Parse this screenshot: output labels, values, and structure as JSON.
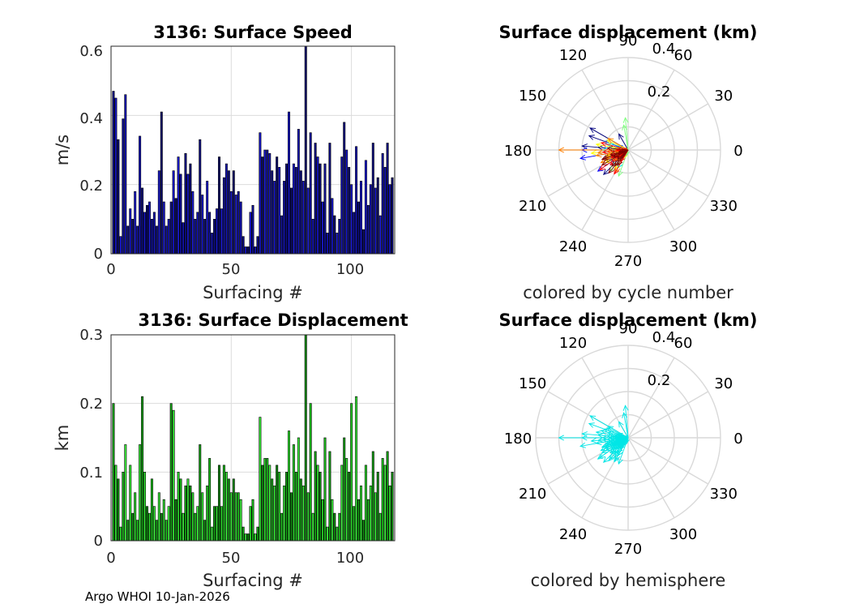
{
  "figure": {
    "footer": "Argo WHOI 10-Jan-2026"
  },
  "chart_data": [
    {
      "type": "bar",
      "title": "3136: Surface Speed",
      "xlabel": "Surfacing #",
      "ylabel": "m/s",
      "xlim": [
        0,
        118
      ],
      "ylim": [
        0,
        0.6
      ],
      "xticks": [
        "0",
        "50",
        "100"
      ],
      "yticks": [
        "0",
        "0.2",
        "0.4",
        "0.6"
      ],
      "grid": true,
      "bar_colors": [
        "#0d0d80",
        "#1414c8",
        "#0b0b6a",
        "#1a1ad2",
        "#10109a",
        "#1212b4"
      ],
      "x": [
        1,
        2,
        3,
        4,
        5,
        6,
        7,
        8,
        9,
        10,
        11,
        12,
        13,
        14,
        15,
        16,
        17,
        18,
        19,
        20,
        21,
        22,
        23,
        24,
        25,
        26,
        27,
        28,
        29,
        30,
        31,
        32,
        33,
        34,
        35,
        36,
        37,
        38,
        39,
        40,
        41,
        42,
        43,
        44,
        45,
        46,
        47,
        48,
        49,
        50,
        51,
        52,
        53,
        54,
        55,
        56,
        57,
        58,
        59,
        60,
        61,
        62,
        63,
        64,
        65,
        66,
        67,
        68,
        69,
        70,
        71,
        72,
        73,
        74,
        75,
        76,
        77,
        78,
        79,
        80,
        81,
        82,
        83,
        84,
        85,
        86,
        87,
        88,
        89,
        90,
        91,
        92,
        93,
        94,
        95,
        96,
        97,
        98,
        99,
        100,
        101,
        102,
        103,
        104,
        105,
        106,
        107,
        108,
        109,
        110,
        111,
        112,
        113,
        114,
        115,
        116,
        117
      ],
      "values": [
        0.47,
        0.45,
        0.33,
        0.05,
        0.39,
        0.46,
        0.08,
        0.13,
        0.1,
        0.18,
        0.08,
        0.34,
        0.19,
        0.12,
        0.14,
        0.15,
        0.1,
        0.12,
        0.08,
        0.24,
        0.41,
        0.15,
        0.08,
        0.1,
        0.15,
        0.24,
        0.16,
        0.28,
        0.23,
        0.09,
        0.29,
        0.23,
        0.26,
        0.18,
        0.1,
        0.12,
        0.33,
        0.17,
        0.1,
        0.21,
        0.12,
        0.06,
        0.1,
        0.13,
        0.28,
        0.13,
        0.22,
        0.26,
        0.24,
        0.18,
        0.24,
        0.17,
        0.18,
        0.15,
        0.05,
        0.02,
        0.02,
        0.12,
        0.14,
        0.02,
        0.05,
        0.35,
        0.28,
        0.3,
        0.3,
        0.29,
        0.24,
        0.21,
        0.28,
        0.25,
        0.11,
        0.21,
        0.26,
        0.41,
        0.19,
        0.26,
        0.25,
        0.36,
        0.24,
        0.21,
        0.61,
        0.19,
        0.35,
        0.1,
        0.32,
        0.28,
        0.26,
        0.15,
        0.26,
        0.06,
        0.32,
        0.16,
        0.11,
        0.06,
        0.1,
        0.28,
        0.38,
        0.3,
        0.25,
        0.2,
        0.12,
        0.31,
        0.15,
        0.21,
        0.07,
        0.27,
        0.14,
        0.2,
        0.32,
        0.19,
        0.22,
        0.11,
        0.29,
        0.25,
        0.32,
        0.2,
        0.22
      ]
    },
    {
      "type": "polar_vectors",
      "title": "Surface displacement (km)",
      "caption": "colored by cycle number",
      "rlim": [
        0,
        0.4
      ],
      "rticks": [
        "0.2",
        "0.4"
      ],
      "theta_ticks": [
        "0",
        "30",
        "60",
        "90",
        "120",
        "150",
        "180",
        "210",
        "240",
        "270",
        "300",
        "330"
      ],
      "colormap": [
        "#00007f",
        "#0000ff",
        "#007fff",
        "#00ffff",
        "#7fff7f",
        "#ffff00",
        "#ff7f00",
        "#ff0000",
        "#7f0000"
      ],
      "r": [
        0.2,
        0.19,
        0.12,
        0.03,
        0.15,
        0.18,
        0.03,
        0.05,
        0.04,
        0.07,
        0.03,
        0.13,
        0.08,
        0.21,
        0.06,
        0.06,
        0.04,
        0.05,
        0.03,
        0.09,
        0.16,
        0.06,
        0.03,
        0.04,
        0.06,
        0.2,
        0.06,
        0.11,
        0.09,
        0.04,
        0.11,
        0.09,
        0.1,
        0.07,
        0.04,
        0.05,
        0.13,
        0.07,
        0.04,
        0.08,
        0.05,
        0.02,
        0.04,
        0.05,
        0.11,
        0.05,
        0.09,
        0.1,
        0.09,
        0.07,
        0.09,
        0.07,
        0.07,
        0.06,
        0.02,
        0.01,
        0.01,
        0.05,
        0.06,
        0.01,
        0.02,
        0.14,
        0.11,
        0.12,
        0.12,
        0.11,
        0.09,
        0.08,
        0.11,
        0.1,
        0.04,
        0.08,
        0.1,
        0.16,
        0.07,
        0.1,
        0.1,
        0.14,
        0.09,
        0.08,
        0.3,
        0.07,
        0.14,
        0.04,
        0.13,
        0.11,
        0.1,
        0.06,
        0.1,
        0.02,
        0.13,
        0.06,
        0.04,
        0.02,
        0.04,
        0.11,
        0.15,
        0.12,
        0.1,
        0.08,
        0.05,
        0.12,
        0.06,
        0.08,
        0.03,
        0.11,
        0.06,
        0.08,
        0.13,
        0.07,
        0.09,
        0.04,
        0.12,
        0.1,
        0.13,
        0.08,
        0.09
      ],
      "theta": [
        175,
        150,
        200,
        185,
        225,
        160,
        205,
        195,
        180,
        185,
        200,
        175,
        120,
        190,
        210,
        220,
        200,
        190,
        180,
        205,
        215,
        225,
        240,
        200,
        170,
        180,
        195,
        210,
        240,
        230,
        160,
        215,
        220,
        205,
        195,
        160,
        185,
        175,
        210,
        235,
        230,
        190,
        200,
        215,
        180,
        205,
        165,
        200,
        225,
        190,
        240,
        175,
        210,
        200,
        185,
        170,
        190,
        215,
        200,
        185,
        260,
        95,
        100,
        250,
        230,
        210,
        195,
        180,
        205,
        155,
        240,
        215,
        200,
        185,
        220,
        235,
        195,
        170,
        185,
        215,
        180,
        200,
        190,
        220,
        205,
        240,
        200,
        180,
        150,
        160,
        185,
        210,
        195,
        170,
        200,
        185,
        215,
        240,
        220,
        200,
        180,
        165,
        235,
        205,
        190,
        200,
        220,
        235,
        230,
        205,
        175,
        190,
        200,
        225,
        210,
        195,
        230
      ]
    },
    {
      "type": "bar",
      "title": "3136: Surface Displacement",
      "xlabel": "Surfacing #",
      "ylabel": "km",
      "xlim": [
        0,
        118
      ],
      "ylim": [
        0,
        0.3
      ],
      "xticks": [
        "0",
        "50",
        "100"
      ],
      "yticks": [
        "0",
        "0.1",
        "0.2",
        "0.3"
      ],
      "grid": true,
      "bar_colors": [
        "#12a012",
        "#33e633",
        "#0f8a0f",
        "#2bd52b",
        "#1cbf1c",
        "#3ef03e"
      ],
      "x": [
        1,
        2,
        3,
        4,
        5,
        6,
        7,
        8,
        9,
        10,
        11,
        12,
        13,
        14,
        15,
        16,
        17,
        18,
        19,
        20,
        21,
        22,
        23,
        24,
        25,
        26,
        27,
        28,
        29,
        30,
        31,
        32,
        33,
        34,
        35,
        36,
        37,
        38,
        39,
        40,
        41,
        42,
        43,
        44,
        45,
        46,
        47,
        48,
        49,
        50,
        51,
        52,
        53,
        54,
        55,
        56,
        57,
        58,
        59,
        60,
        61,
        62,
        63,
        64,
        65,
        66,
        67,
        68,
        69,
        70,
        71,
        72,
        73,
        74,
        75,
        76,
        77,
        78,
        79,
        80,
        81,
        82,
        83,
        84,
        85,
        86,
        87,
        88,
        89,
        90,
        91,
        92,
        93,
        94,
        95,
        96,
        97,
        98,
        99,
        100,
        101,
        102,
        103,
        104,
        105,
        106,
        107,
        108,
        109,
        110,
        111,
        112,
        113,
        114,
        115,
        116,
        117
      ],
      "values": [
        0.2,
        0.11,
        0.09,
        0.02,
        0.1,
        0.14,
        0.03,
        0.11,
        0.04,
        0.07,
        0.03,
        0.14,
        0.21,
        0.1,
        0.05,
        0.04,
        0.09,
        0.05,
        0.03,
        0.07,
        0.04,
        0.06,
        0.03,
        0.05,
        0.2,
        0.19,
        0.06,
        0.1,
        0.09,
        0.04,
        0.08,
        0.09,
        0.08,
        0.07,
        0.04,
        0.05,
        0.14,
        0.07,
        0.03,
        0.08,
        0.12,
        0.02,
        0.05,
        0.05,
        0.11,
        0.05,
        0.11,
        0.1,
        0.09,
        0.07,
        0.09,
        0.07,
        0.07,
        0.06,
        0.02,
        0.01,
        0.01,
        0.05,
        0.06,
        0.01,
        0.02,
        0.18,
        0.11,
        0.12,
        0.12,
        0.11,
        0.09,
        0.08,
        0.11,
        0.1,
        0.04,
        0.08,
        0.1,
        0.16,
        0.07,
        0.14,
        0.1,
        0.15,
        0.09,
        0.08,
        0.3,
        0.07,
        0.2,
        0.04,
        0.13,
        0.11,
        0.1,
        0.06,
        0.15,
        0.02,
        0.13,
        0.06,
        0.04,
        0.02,
        0.04,
        0.11,
        0.15,
        0.12,
        0.1,
        0.2,
        0.05,
        0.21,
        0.06,
        0.08,
        0.03,
        0.11,
        0.06,
        0.08,
        0.13,
        0.07,
        0.1,
        0.04,
        0.12,
        0.11,
        0.13,
        0.08,
        0.1
      ]
    },
    {
      "type": "polar_vectors",
      "title": "Surface displacement (km)",
      "caption": "colored by hemisphere",
      "rlim": [
        0,
        0.4
      ],
      "rticks": [
        "0.2",
        "0.4"
      ],
      "theta_ticks": [
        "0",
        "30",
        "60",
        "90",
        "120",
        "150",
        "180",
        "210",
        "240",
        "270",
        "300",
        "330"
      ],
      "color": "#00e6e6",
      "r": [
        0.2,
        0.19,
        0.12,
        0.03,
        0.15,
        0.18,
        0.03,
        0.05,
        0.04,
        0.07,
        0.03,
        0.13,
        0.08,
        0.21,
        0.06,
        0.06,
        0.04,
        0.05,
        0.03,
        0.09,
        0.16,
        0.06,
        0.03,
        0.04,
        0.06,
        0.2,
        0.06,
        0.11,
        0.09,
        0.04,
        0.11,
        0.09,
        0.1,
        0.07,
        0.04,
        0.05,
        0.13,
        0.07,
        0.04,
        0.08,
        0.05,
        0.02,
        0.04,
        0.05,
        0.11,
        0.05,
        0.09,
        0.1,
        0.09,
        0.07,
        0.09,
        0.07,
        0.07,
        0.06,
        0.02,
        0.01,
        0.01,
        0.05,
        0.06,
        0.01,
        0.02,
        0.14,
        0.11,
        0.12,
        0.12,
        0.11,
        0.09,
        0.08,
        0.11,
        0.1,
        0.04,
        0.08,
        0.1,
        0.16,
        0.07,
        0.1,
        0.1,
        0.14,
        0.09,
        0.08,
        0.3,
        0.07,
        0.14,
        0.04,
        0.13,
        0.11,
        0.1,
        0.06,
        0.1,
        0.02,
        0.13,
        0.06,
        0.04,
        0.02,
        0.04,
        0.11,
        0.15,
        0.12,
        0.1,
        0.08,
        0.05,
        0.12,
        0.06,
        0.08,
        0.03,
        0.11,
        0.06,
        0.08,
        0.13,
        0.07,
        0.09,
        0.04,
        0.12,
        0.1,
        0.13,
        0.08,
        0.09
      ],
      "theta": [
        175,
        150,
        200,
        185,
        225,
        160,
        205,
        195,
        180,
        185,
        200,
        175,
        120,
        190,
        210,
        220,
        200,
        190,
        180,
        205,
        215,
        225,
        240,
        200,
        170,
        180,
        195,
        210,
        240,
        230,
        160,
        215,
        220,
        205,
        195,
        160,
        185,
        175,
        210,
        235,
        230,
        190,
        200,
        215,
        180,
        205,
        165,
        200,
        225,
        190,
        240,
        175,
        210,
        200,
        185,
        170,
        190,
        215,
        200,
        185,
        260,
        95,
        100,
        250,
        230,
        210,
        195,
        180,
        205,
        155,
        240,
        215,
        200,
        185,
        220,
        235,
        195,
        170,
        185,
        215,
        180,
        200,
        190,
        220,
        205,
        240,
        200,
        180,
        150,
        160,
        185,
        210,
        195,
        170,
        200,
        185,
        215,
        240,
        220,
        200,
        180,
        165,
        235,
        205,
        190,
        200,
        220,
        235,
        230,
        205,
        175,
        190,
        200,
        225,
        210,
        195,
        230
      ]
    }
  ]
}
